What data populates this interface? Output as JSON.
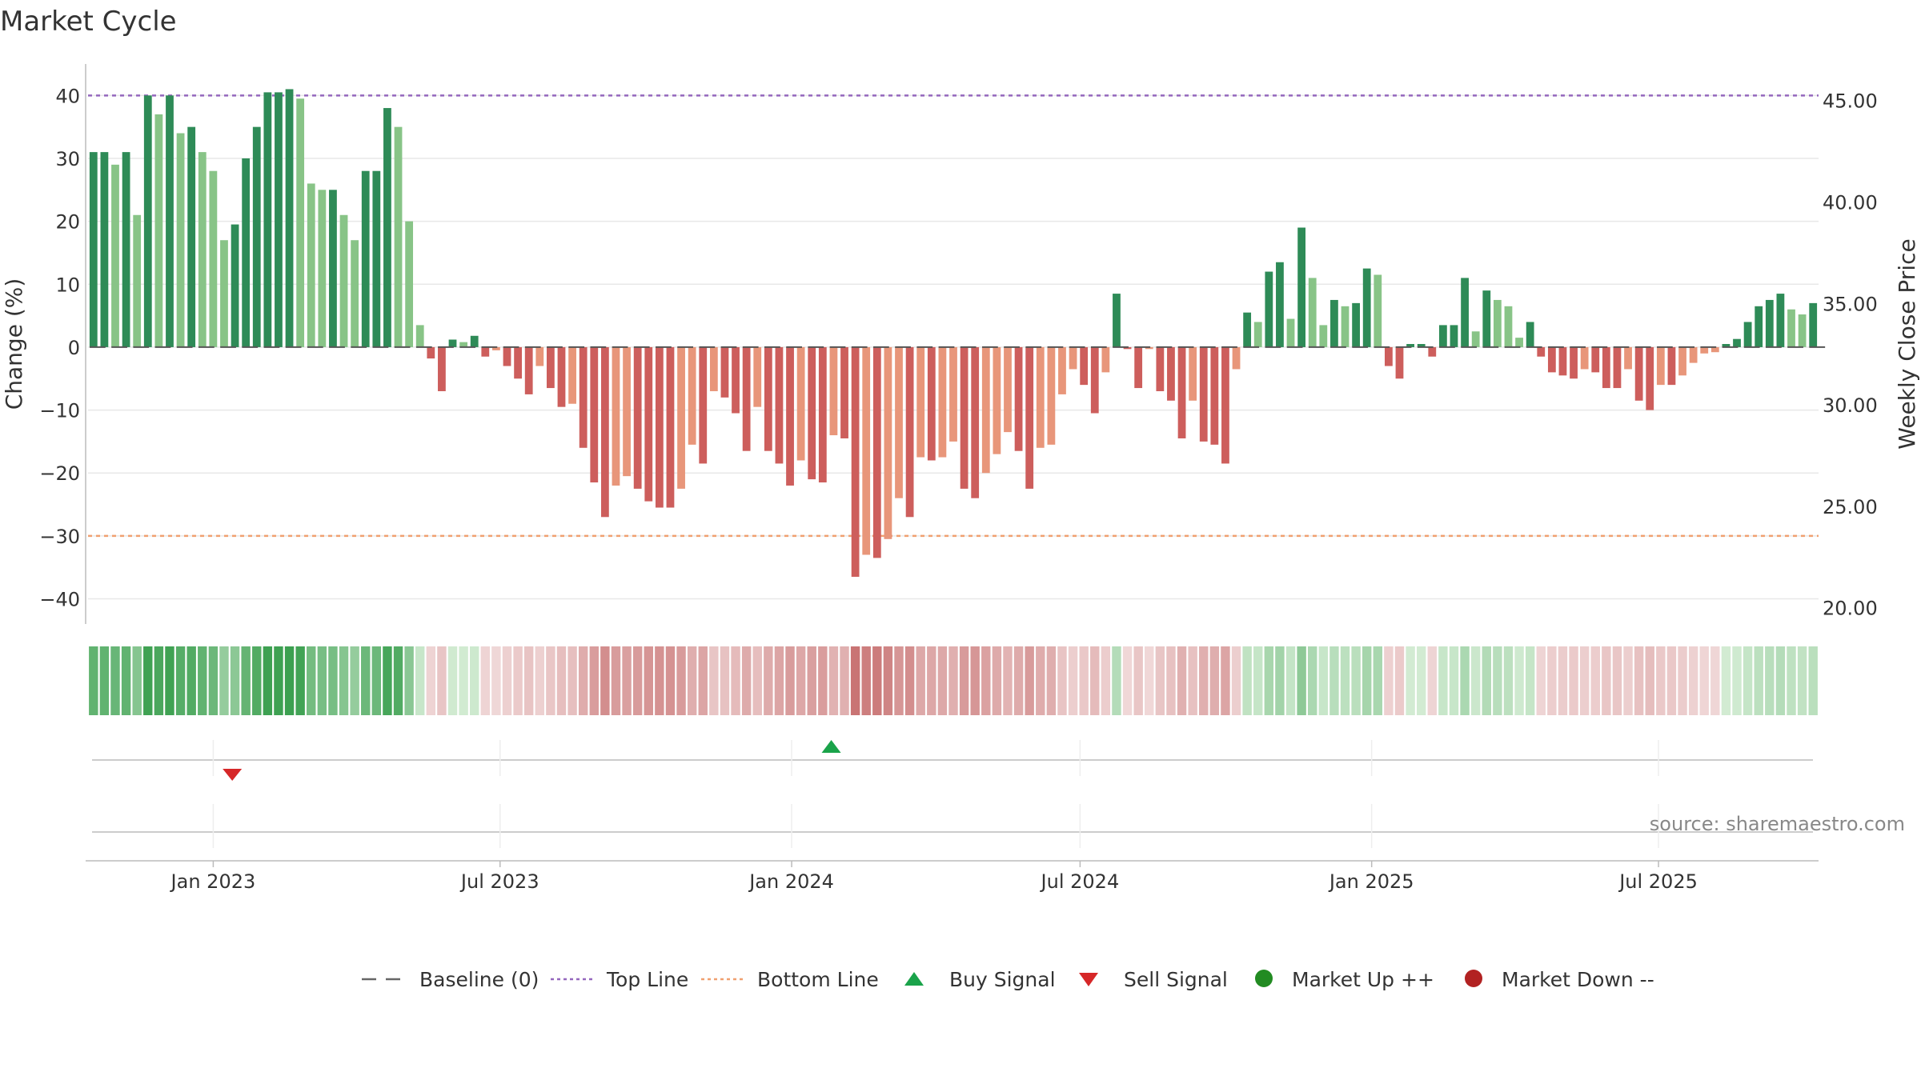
{
  "chart_data": {
    "type": "bar",
    "title": "Market Cycle",
    "ylabel": "Change (%)",
    "y2label": "Weekly Close Price",
    "ylim": [
      -44,
      45
    ],
    "y2lim": [
      19.2,
      46.8
    ],
    "yticks": [
      40,
      30,
      20,
      10,
      0,
      -10,
      -20,
      -30,
      -40
    ],
    "ytick_labels": [
      "40",
      "30",
      "20",
      "10",
      "0",
      "−10",
      "−20",
      "−30",
      "−40"
    ],
    "y2ticks": [
      45,
      40,
      35,
      30,
      25,
      20
    ],
    "y2tick_labels": [
      "45.00",
      "40.00",
      "35.00",
      "30.00",
      "25.00",
      "20.00"
    ],
    "x_start": "2022-10-14",
    "x_end": "2025-10-10",
    "xticks": [
      "2023-01-01",
      "2023-07-01",
      "2024-01-01",
      "2024-07-01",
      "2025-01-01",
      "2025-07-01"
    ],
    "xtick_labels": [
      "Jan 2023",
      "Jul 2023",
      "Jan 2024",
      "Jul 2024",
      "Jan 2025",
      "Jul 2025"
    ],
    "top_line": 40,
    "bottom_line": -30,
    "baseline": 0,
    "grid": true,
    "legend_position": "bottom-center",
    "values": [
      31,
      31,
      29,
      31,
      21,
      40,
      37,
      40,
      34,
      35,
      31,
      28,
      17,
      19.5,
      30,
      35,
      40.5,
      40.5,
      41,
      39.5,
      26,
      25,
      25,
      21,
      17,
      28,
      28,
      38,
      35,
      20,
      3.5,
      -1.8,
      -7,
      1.2,
      0.8,
      1.8,
      -1.5,
      -0.5,
      -3,
      -5,
      -7.5,
      -3,
      -6.5,
      -9.5,
      -9,
      -16,
      -21.5,
      -27,
      -22,
      -20.5,
      -22.5,
      -24.5,
      -25.5,
      -25.5,
      -22.5,
      -15.5,
      -18.5,
      -7,
      -8,
      -10.5,
      -16.5,
      -9.5,
      -16.5,
      -18.5,
      -22,
      -18,
      -21,
      -21.5,
      -14,
      -14.5,
      -36.5,
      -33,
      -33.5,
      -30.5,
      -24,
      -27,
      -17.5,
      -18,
      -17.5,
      -15,
      -22.5,
      -24,
      -20,
      -17,
      -13.5,
      -16.5,
      -22.5,
      -16,
      -15.5,
      -7.5,
      -3.5,
      -6,
      -10.5,
      -4,
      8.5,
      -0.3,
      -6.5,
      -0.3,
      -7,
      -8.5,
      -14.5,
      -8.5,
      -15,
      -15.5,
      -18.5,
      -3.5,
      5.5,
      4,
      12,
      13.5,
      4.5,
      19,
      11,
      3.5,
      7.5,
      6.5,
      7,
      12.5,
      11.5,
      -3,
      -5,
      0.5,
      0.5,
      -1.5,
      3.5,
      3.5,
      11,
      2.5,
      9,
      7.5,
      6.5,
      1.5,
      4,
      -1.5,
      -4,
      -4.5,
      -5,
      -3.5,
      -4,
      -6.5,
      -6.5,
      -3.5,
      -8.5,
      -10,
      -6,
      -6,
      -4.5,
      -2.5,
      -1,
      -0.8,
      0.5,
      1.3,
      4,
      6.5,
      7.5,
      8.5,
      6,
      5.2,
      7
    ],
    "signals": [
      {
        "type": "sell",
        "date": "2023-01-13"
      },
      {
        "type": "buy",
        "date": "2024-01-26"
      }
    ]
  },
  "colors": {
    "strong_up": "#2e8b57",
    "weak_up": "#88c487",
    "strong_down": "#cd5e5c",
    "weak_down": "#e8967a",
    "top_line": "#9467bd",
    "bottom_line": "#f0a070",
    "buy": "#1aa34a",
    "sell": "#d62728",
    "market_up": "#228b22",
    "market_down": "#b22222",
    "baseline": "#555555"
  },
  "legend": {
    "items": [
      {
        "label": "Baseline (0)",
        "kind": "dash"
      },
      {
        "label": "Top Line",
        "kind": "dot-purple"
      },
      {
        "label": "Bottom Line",
        "kind": "dot-orange"
      },
      {
        "label": "Buy Signal",
        "kind": "tri-up"
      },
      {
        "label": "Sell Signal",
        "kind": "tri-down"
      },
      {
        "label": "Market Up ++",
        "kind": "circle-green"
      },
      {
        "label": "Market Down --",
        "kind": "circle-red"
      }
    ]
  },
  "source": "source: sharemaestro.com"
}
